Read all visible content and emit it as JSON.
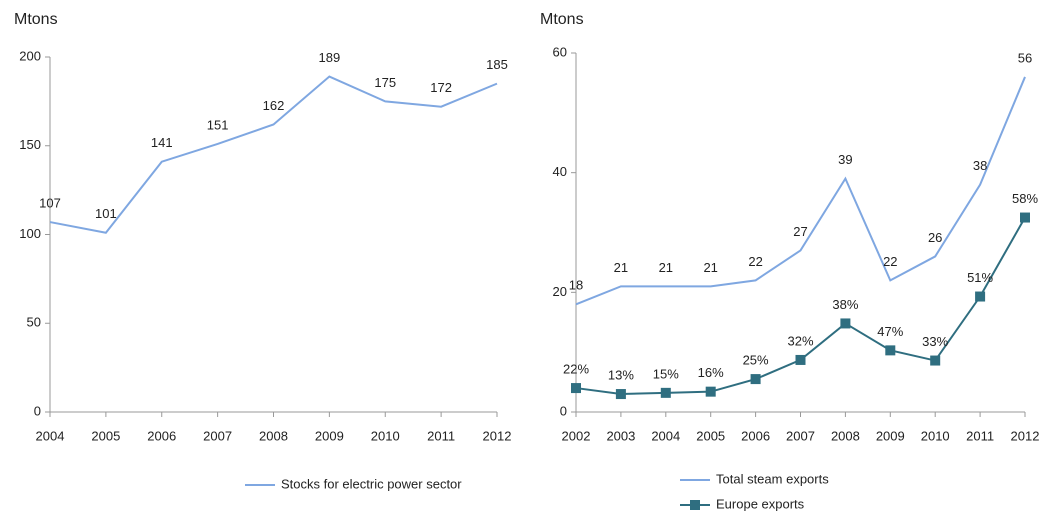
{
  "chart_data": [
    {
      "type": "line",
      "ylabel": "Mtons",
      "categories": [
        "2004",
        "2005",
        "2006",
        "2007",
        "2008",
        "2009",
        "2010",
        "2011",
        "2012"
      ],
      "series": [
        {
          "name": "Stocks for electric power sector",
          "color": "#7fa7e1",
          "values": [
            107,
            101,
            141,
            151,
            162,
            189,
            175,
            172,
            185
          ]
        }
      ],
      "ylim": [
        0,
        200
      ],
      "yticks": [
        0,
        50,
        100,
        150,
        200
      ]
    },
    {
      "type": "line",
      "ylabel": "Mtons",
      "categories": [
        "2002",
        "2003",
        "2004",
        "2005",
        "2006",
        "2007",
        "2008",
        "2009",
        "2010",
        "2011",
        "2012"
      ],
      "series": [
        {
          "name": "Total steam exports",
          "color": "#7fa7e1",
          "values": [
            18,
            21,
            21,
            21,
            22,
            27,
            39,
            22,
            26,
            38,
            56
          ]
        },
        {
          "name": "Europe exports",
          "color": "#2f6e80",
          "marker": "square",
          "values": [
            4,
            3,
            3.2,
            3.4,
            5.5,
            8.7,
            14.8,
            10.3,
            8.6,
            19.3,
            32.5
          ],
          "point_labels": [
            "22%",
            "13%",
            "15%",
            "16%",
            "25%",
            "32%",
            "38%",
            "47%",
            "33%",
            "51%",
            "58%"
          ]
        }
      ],
      "ylim": [
        0,
        60
      ],
      "yticks": [
        0,
        20,
        40,
        60
      ]
    }
  ]
}
